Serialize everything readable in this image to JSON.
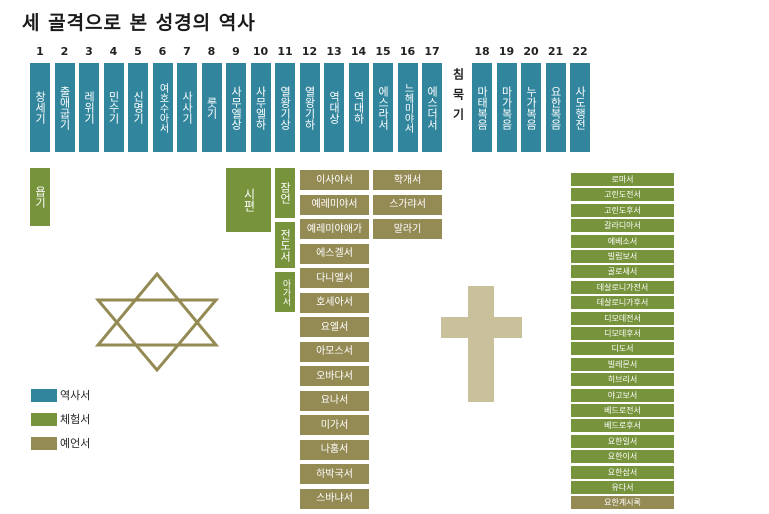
{
  "title": "세 골격으로 본 성경의 역사",
  "colors": {
    "history": "#31859c",
    "experience": "#77933c",
    "prophecy": "#948a54",
    "cross": "#c9c19c",
    "star": "#948a54"
  },
  "numbers": [
    "1",
    "2",
    "3",
    "4",
    "5",
    "6",
    "7",
    "8",
    "9",
    "10",
    "11",
    "12",
    "13",
    "14",
    "15",
    "16",
    "17",
    "18",
    "19",
    "20",
    "21",
    "22"
  ],
  "history_books": [
    "창세기",
    "출애굽기",
    "레위기",
    "민수기",
    "신명기",
    "여호수아서",
    "사사기",
    "룻기",
    "사무엘상",
    "사무엘하",
    "열왕기상",
    "열왕기하",
    "역대상",
    "역대하",
    "에스라서",
    "느헤미야서",
    "에스더서"
  ],
  "silence_label": "침묵기",
  "gospel_books": [
    "마태복음",
    "마가복음",
    "누가복음",
    "요한복음",
    "사도행전"
  ],
  "experience_books": {
    "job": "욥기",
    "psalms": "시편",
    "proverbs": "잠언",
    "ecclesiastes": "전도서",
    "song": "아가서"
  },
  "prophecy_left": [
    "이사야서",
    "예레미야서",
    "예레미야애가",
    "에스겔서",
    "다니엘서",
    "호세아서",
    "요엘서",
    "아모스서",
    "오바댜서",
    "요나서",
    "미가서",
    "나훔서",
    "하박국서",
    "스바냐서"
  ],
  "prophecy_right": [
    "학개서",
    "스가랴서",
    "말라기"
  ],
  "epistles": [
    "로마서",
    "고린도전서",
    "고린도후서",
    "갈라디아서",
    "에베소서",
    "빌립보서",
    "골로새서",
    "데살로니가전서",
    "데살로니가후서",
    "디모데전서",
    "디모데후서",
    "디도서",
    "빌레몬서",
    "히브리서",
    "야고보서",
    "베드로전서",
    "베드로후서",
    "요한일서",
    "요한이서",
    "요한삼서",
    "유다서",
    "요한계시록"
  ],
  "legend": [
    {
      "label": "역사서",
      "color": "#31859c"
    },
    {
      "label": "체험서",
      "color": "#77933c"
    },
    {
      "label": "예언서",
      "color": "#948a54"
    }
  ]
}
